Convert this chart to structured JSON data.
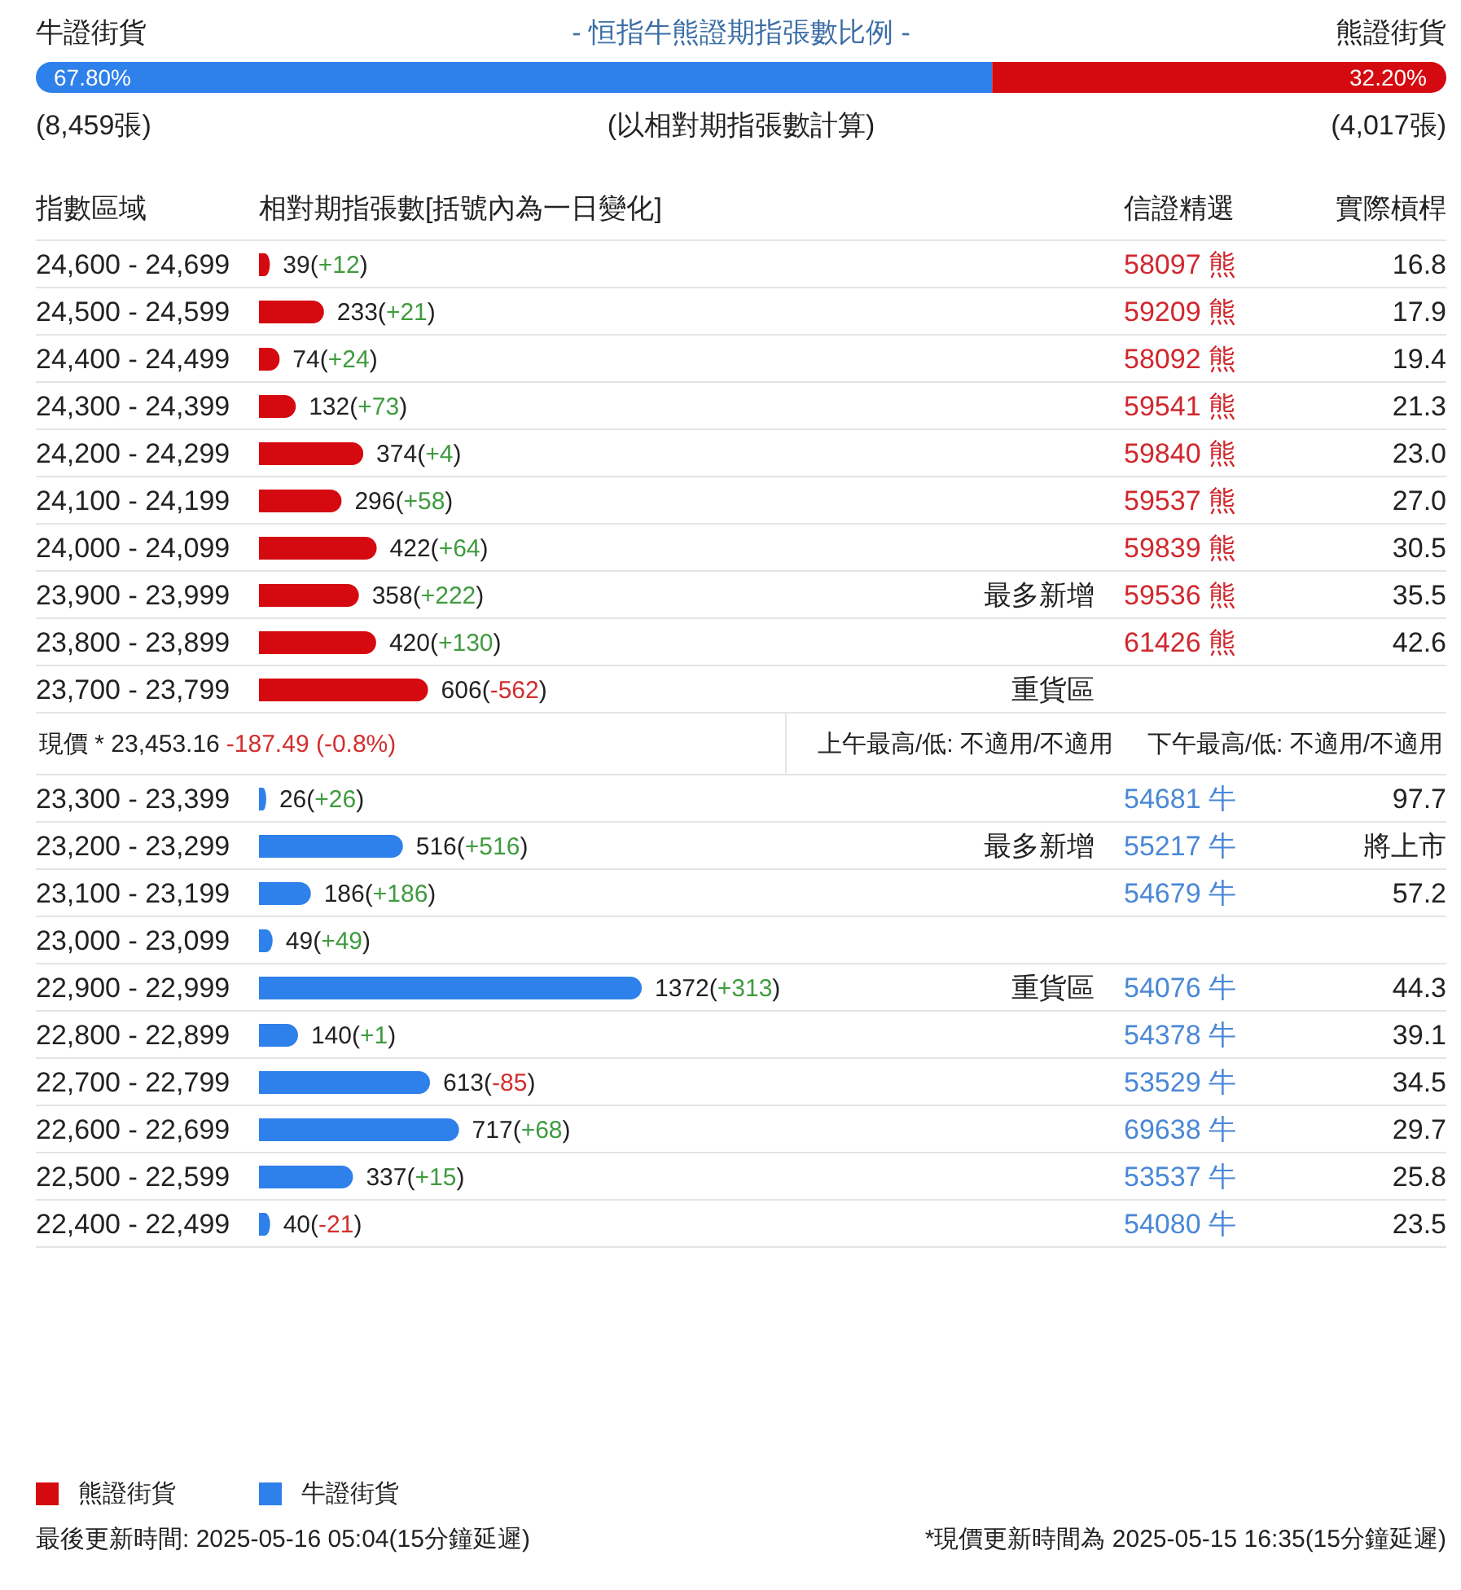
{
  "chart_data": [
    {
      "type": "bar",
      "orientation": "horizontal",
      "stacked": true,
      "title": "- 恒指牛熊證期指張數比例 -",
      "categories": [
        null
      ],
      "xlim": [
        0,
        100
      ],
      "series": [
        {
          "name": "牛證街貨",
          "color": "#2e80ea",
          "values": [
            67.8
          ],
          "value_labels": [
            "67.80%"
          ]
        },
        {
          "name": "熊證街貨",
          "color": "#d50a10",
          "values": [
            32.2
          ],
          "value_labels": [
            "32.20%"
          ]
        }
      ],
      "annotations": [
        "(8,459張)",
        "(以相對期指張數計算)",
        "(4,017張)"
      ]
    },
    {
      "type": "bar",
      "orientation": "horizontal",
      "xlabel": "相對期指張數[括號內為一日變化]",
      "ylabel": "指數區域",
      "categories": [
        "24,600 - 24,699",
        "24,500 - 24,599",
        "24,400 - 24,499",
        "24,300 - 24,399",
        "24,200 - 24,299",
        "24,100 - 24,199",
        "24,000 - 24,099",
        "23,900 - 23,999",
        "23,800 - 23,899",
        "23,700 - 23,799"
      ],
      "legend": "bottom",
      "grid": "y",
      "tick_labels": "y",
      "series": [
        {
          "name": "熊證街貨",
          "color": "#d50a10",
          "values": [
            39,
            233,
            74,
            132,
            374,
            296,
            422,
            358,
            420,
            606
          ],
          "value_labels": [
            "39(+12)",
            "233(+21)",
            "74(+24)",
            "132(+73)",
            "374(+4)",
            "296(+58)",
            "422(+64)",
            "358(+222)",
            "420(+130)",
            "606(-562)"
          ]
        }
      ]
    },
    {
      "type": "bar",
      "orientation": "horizontal",
      "categories": [
        "23,300 - 23,399",
        "23,200 - 23,299",
        "23,100 - 23,199",
        "23,000 - 23,099",
        "22,900 - 22,999",
        "22,800 - 22,899",
        "22,700 - 22,799",
        "22,600 - 22,699",
        "22,500 - 22,599",
        "22,400 - 22,499"
      ],
      "legend": "bottom",
      "grid": "y",
      "tick_labels": "y",
      "series": [
        {
          "name": "牛證街貨",
          "color": "#2e80ea",
          "values": [
            26,
            516,
            186,
            49,
            1372,
            140,
            613,
            717,
            337,
            40
          ],
          "value_labels": [
            "26(+26)",
            "516(+516)",
            "186(+186)",
            "49(+49)",
            "1372(+313)",
            "140(+1)",
            "613(-85)",
            "717(+68)",
            "337(+15)",
            "40(-21)"
          ]
        }
      ],
      "annotations": [
        "現價 *  23,453.16",
        "-187.49 (-0.8%)",
        "上午最高/低: 不適用/不適用",
        "下午最高/低: 不適用/不適用",
        "最後更新時間: 2025-05-16 05:04(15分鐘延遲)",
        "*現價更新時間為 2025-05-15 16:35(15分鐘延遲)"
      ]
    },
    {
      "type": "other",
      "categories": [
        null,
        null,
        null,
        null,
        null,
        null,
        null,
        "最多新增",
        null,
        "重貨區",
        null,
        null,
        "最多新增",
        null,
        null,
        "重貨區",
        null,
        null,
        null,
        null,
        null
      ]
    },
    {
      "type": "other",
      "title": "信證精選",
      "categories": [
        "58097 熊",
        "59209 熊",
        "58092 熊",
        "59541 熊",
        "59840 熊",
        "59537 熊",
        "59839 熊",
        "59536 熊",
        "61426 熊",
        null,
        null,
        "54681 牛",
        "55217 牛",
        "54679 牛",
        null,
        "54076 牛",
        "54378 牛",
        "53529 牛",
        "69638 牛",
        "53537 牛",
        "54080 牛"
      ],
      "colors": [
        "#d0282e",
        "#d0282e",
        "#d0282e",
        "#d0282e",
        "#d0282e",
        "#d0282e",
        "#d0282e",
        "#d0282e",
        "#d0282e",
        null,
        null,
        "#4a88d6",
        "#4a88d6",
        "#4a88d6",
        null,
        "#4a88d6",
        "#4a88d6",
        "#4a88d6",
        "#4a88d6",
        "#4a88d6",
        "#4a88d6"
      ]
    },
    {
      "type": "other",
      "title": "實際槓桿",
      "categories": [
        "16.8",
        "17.9",
        "19.4",
        "21.3",
        "23.0",
        "27.0",
        "30.5",
        "35.5",
        "42.6",
        null,
        null,
        "97.7",
        "將上市",
        "57.2",
        null,
        "44.3",
        "39.1",
        "34.5",
        "29.7",
        "25.8",
        "23.5"
      ]
    }
  ]
}
